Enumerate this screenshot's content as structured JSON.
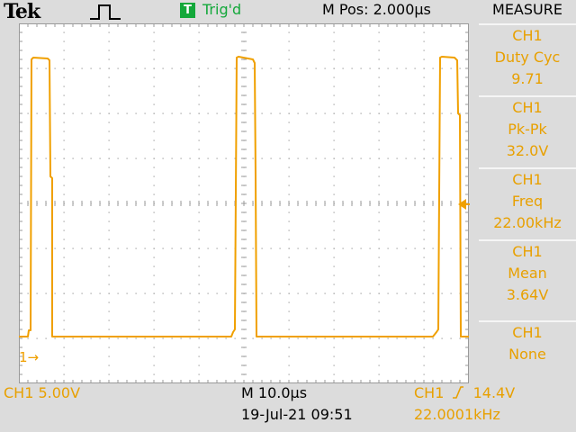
{
  "header": {
    "brand": "Tek",
    "acquisition_icon": "pulse-icon",
    "trigger_badge": "T",
    "trigger_status": "Trig'd",
    "horizontal_position": "M Pos: 2.000µs"
  },
  "channel1": {
    "ground_marker": "1→",
    "scale": "CH1  5.00V"
  },
  "timebase": {
    "scale": "M 10.0µs",
    "datetime": "19-Jul-21 09:51"
  },
  "trigger": {
    "source": "CH1",
    "level": "14.4V",
    "frequency": "22.0001kHz",
    "edge_icon": "rising-edge-icon"
  },
  "menu": {
    "title": "MEASURE",
    "items": [
      {
        "source": "CH1",
        "type": "Duty Cyc",
        "value": "9.71"
      },
      {
        "source": "CH1",
        "type": "Pk-Pk",
        "value": "32.0V"
      },
      {
        "source": "CH1",
        "type": "Freq",
        "value": "22.00kHz"
      },
      {
        "source": "CH1",
        "type": "Mean",
        "value": "3.64V"
      },
      {
        "source": "CH1",
        "type": "None",
        "value": ""
      }
    ]
  },
  "colors": {
    "trace": "#f0a000",
    "trigger_green": "#13a83a",
    "screen_bg": "#ffffff",
    "frame_bg": "#dcdcdc"
  }
}
